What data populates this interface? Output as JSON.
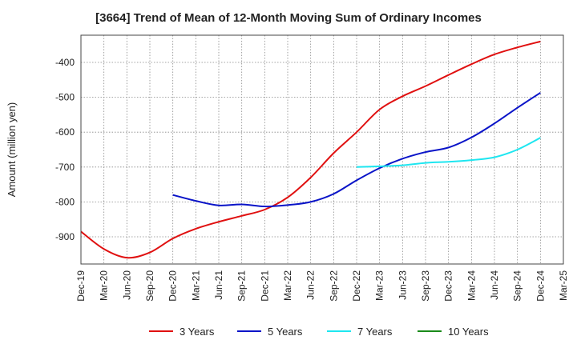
{
  "chart_data": {
    "type": "line",
    "title": "[3664]  Trend of Mean of 12-Month Moving Sum of Ordinary Incomes",
    "xlabel": "",
    "ylabel": "Amount (million yen)",
    "ylim": [
      -978,
      -322
    ],
    "yticks": [
      -900,
      -800,
      -700,
      -600,
      -500,
      -400
    ],
    "categories": [
      "Dec-19",
      "Mar-20",
      "Jun-20",
      "Sep-20",
      "Dec-20",
      "Mar-21",
      "Jun-21",
      "Sep-21",
      "Dec-21",
      "Mar-22",
      "Jun-22",
      "Sep-22",
      "Dec-22",
      "Mar-23",
      "Jun-23",
      "Sep-23",
      "Dec-23",
      "Mar-24",
      "Jun-24",
      "Sep-24",
      "Dec-24",
      "Mar-25"
    ],
    "grid": true,
    "legend_position": "bottom",
    "series": [
      {
        "name": "3 Years",
        "color": "#e01010",
        "values": [
          -885,
          -935,
          -960,
          -945,
          -905,
          -877,
          -857,
          -840,
          -822,
          -787,
          -730,
          -660,
          -600,
          -535,
          -497,
          -468,
          -436,
          -405,
          -377,
          -357,
          -340,
          null
        ]
      },
      {
        "name": "5 Years",
        "color": "#0a14c8",
        "values": [
          null,
          null,
          null,
          null,
          -780,
          -797,
          -810,
          -807,
          -813,
          -809,
          -800,
          -777,
          -738,
          -703,
          -676,
          -657,
          -644,
          -615,
          -575,
          -530,
          -487,
          null
        ]
      },
      {
        "name": "7 Years",
        "color": "#1ee6f0",
        "values": [
          null,
          null,
          null,
          null,
          null,
          null,
          null,
          null,
          null,
          null,
          null,
          null,
          -700,
          -698,
          -695,
          -688,
          -685,
          -680,
          -672,
          -650,
          -616,
          null
        ]
      },
      {
        "name": "10 Years",
        "color": "#1a8a1a",
        "values": [
          null,
          null,
          null,
          null,
          null,
          null,
          null,
          null,
          null,
          null,
          null,
          null,
          null,
          null,
          null,
          null,
          null,
          null,
          null,
          null,
          null,
          null
        ]
      }
    ]
  }
}
